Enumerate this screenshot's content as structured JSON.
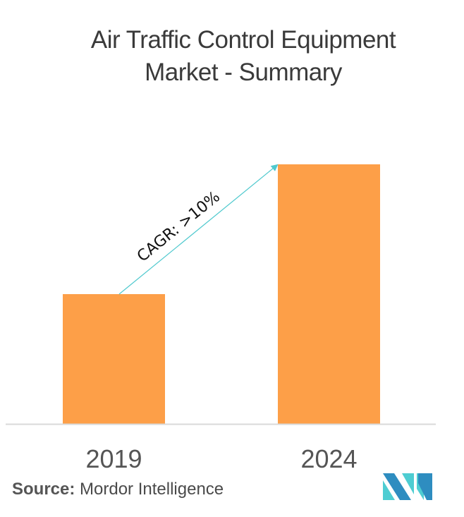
{
  "title_lines": [
    "Air Traffic Control Equipment",
    "Market - Summary"
  ],
  "chart_data": {
    "type": "bar",
    "title": "Air Traffic Control Equipment Market - Summary",
    "categories": [
      "2019",
      "2024"
    ],
    "values": [
      1.0,
      2.0
    ],
    "value_note": "relative market size (no axis values shown; estimated from bar heights)",
    "xlabel": "",
    "ylabel": "",
    "ylim": [
      0,
      2.0
    ],
    "grid": false,
    "annotation": "CAGR: >10%",
    "bar_color": "#FD9F48",
    "arrow_color": "#4FC9CE"
  },
  "source": {
    "label": "Source:",
    "text": "Mordor Intelligence"
  },
  "logo": {
    "icon": "mordor-intelligence-logo-icon",
    "colors": [
      "#2E8DC0",
      "#4ECDD2"
    ]
  }
}
